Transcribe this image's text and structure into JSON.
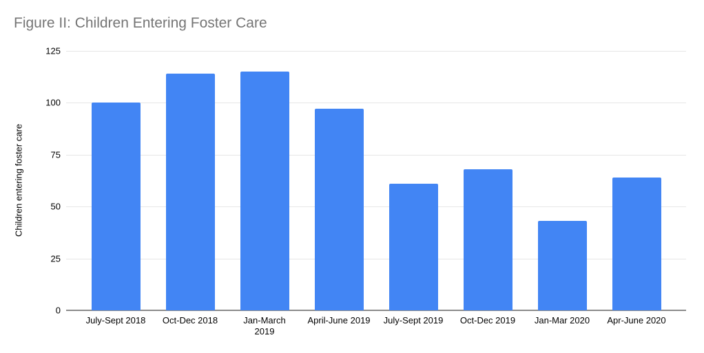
{
  "chart_data": {
    "type": "bar",
    "title": "Figure II: Children Entering Foster Care",
    "ylabel": "Children entering foster care",
    "xlabel": "",
    "categories": [
      "July-Sept 2018",
      "Oct-Dec 2018",
      "Jan-March\n2019",
      "April-June 2019",
      "July-Sept 2019",
      "Oct-Dec 2019",
      "Jan-Mar 2020",
      "Apr-June 2020"
    ],
    "values": [
      100,
      114,
      115,
      97,
      61,
      68,
      43,
      64
    ],
    "yticks": [
      0,
      25,
      50,
      75,
      100,
      125
    ],
    "ylim": [
      0,
      125
    ],
    "grid": true,
    "legend": "none",
    "bar_color": "#4285f4",
    "title_color": "#757575",
    "gridline_color": "#e6e6e6",
    "baseline_color": "#8a8a8a",
    "tick_text_color": "#000000"
  }
}
